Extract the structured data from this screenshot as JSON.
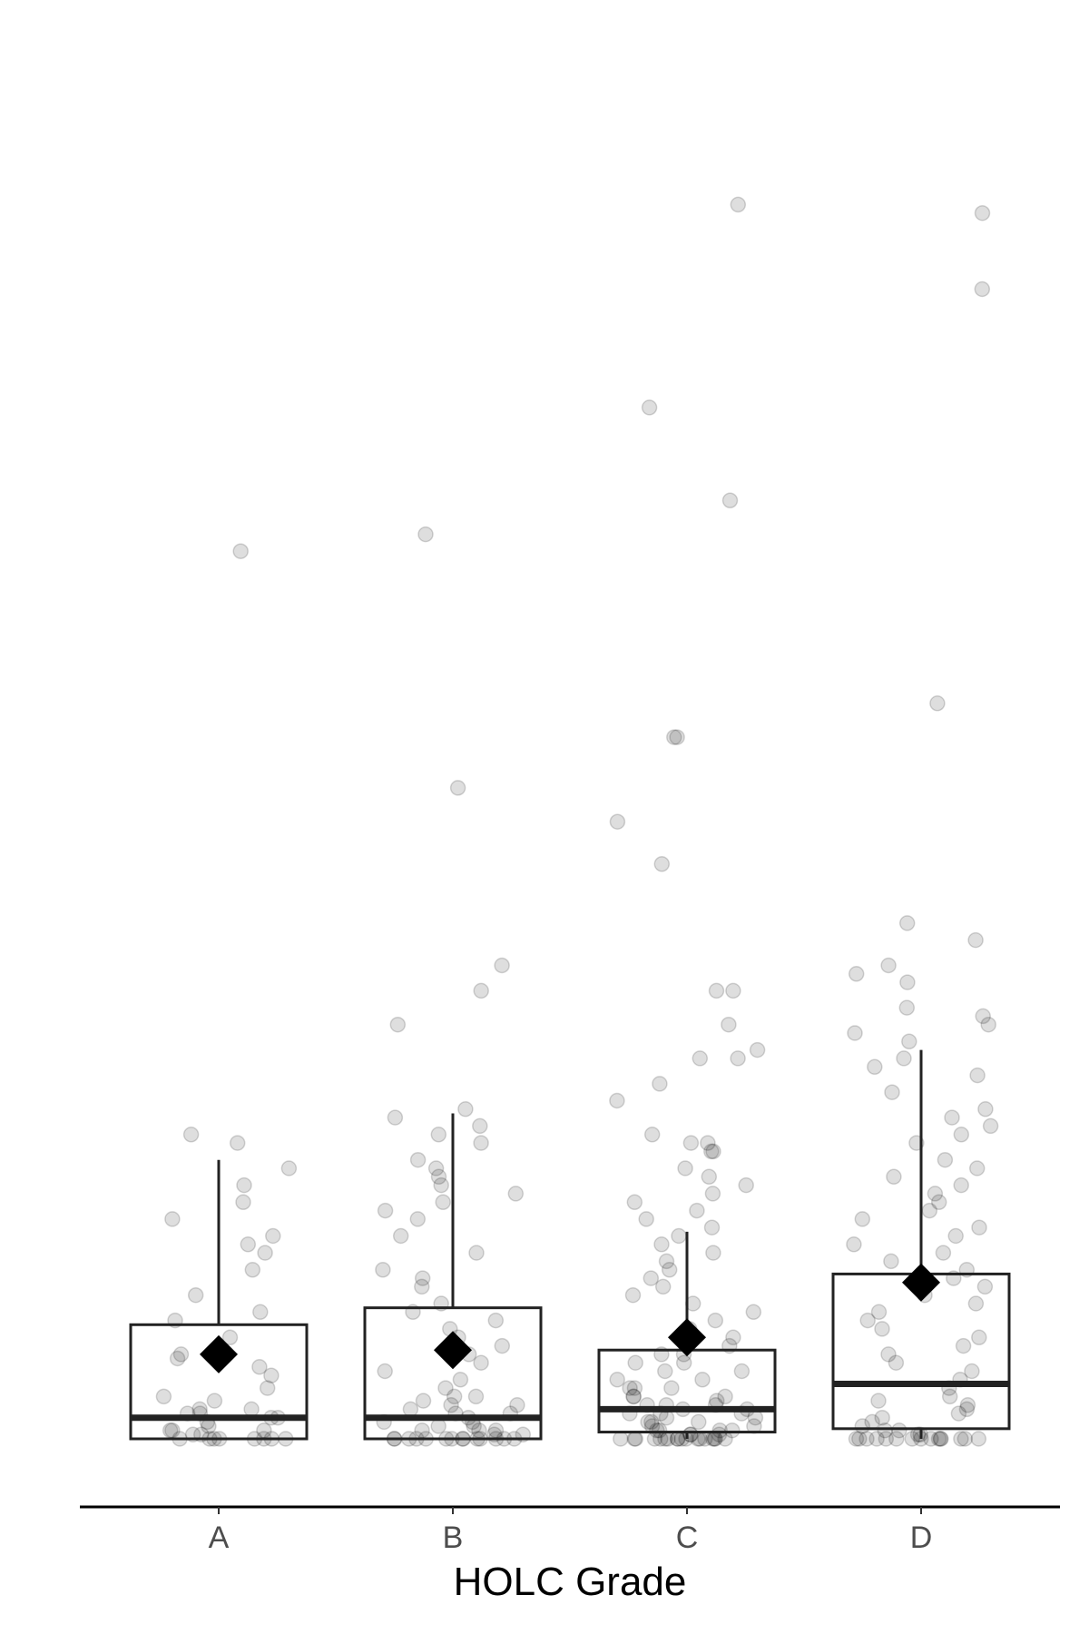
{
  "chart_data": {
    "type": "boxplot",
    "xlabel": "HOLC Grade",
    "ylabel": "",
    "categories": [
      "A",
      "B",
      "C",
      "D"
    ],
    "ylim": [
      0,
      160
    ],
    "y_axis_visible": false,
    "grid": false,
    "colors": {
      "box": "#222222",
      "points": "#000000",
      "mean": "#000000",
      "axis": "#000000"
    },
    "boxes": [
      {
        "category": "A",
        "q1": 0,
        "median": 2.5,
        "q3": 13.5,
        "whisker_low": 0,
        "whisker_high": 33,
        "mean": 10
      },
      {
        "category": "B",
        "q1": 0,
        "median": 2.5,
        "q3": 15.5,
        "whisker_low": 0,
        "whisker_high": 38.5,
        "mean": 10.5
      },
      {
        "category": "C",
        "q1": 0.8,
        "median": 3.5,
        "q3": 10.5,
        "whisker_low": 0,
        "whisker_high": 24.5,
        "mean": 12
      },
      {
        "category": "D",
        "q1": 1.2,
        "median": 6.5,
        "q3": 19.5,
        "whisker_low": 0,
        "whisker_high": 46,
        "mean": 18.5
      }
    ],
    "points": [
      {
        "category": "A",
        "values": [
          105,
          36,
          35,
          32,
          30,
          28,
          26,
          24,
          23,
          22,
          20,
          17,
          15,
          14,
          12,
          10,
          9.5,
          8.5,
          7.5,
          6,
          5,
          4.5,
          3.5,
          3.5,
          3,
          3,
          2.5,
          2.5,
          2,
          1.5,
          1,
          1,
          1,
          0.5,
          0.5,
          0,
          0,
          0,
          0,
          0,
          0,
          0,
          0
        ]
      },
      {
        "category": "B",
        "values": [
          107,
          77,
          56,
          53,
          49,
          39,
          38,
          37,
          36,
          35,
          33,
          32,
          31,
          30,
          29,
          28,
          27,
          26,
          24,
          22,
          20,
          19,
          18,
          16,
          15,
          14,
          13,
          12,
          11,
          10,
          9,
          8,
          7,
          6,
          5,
          5,
          4.5,
          4,
          4,
          3.5,
          3,
          3,
          2.5,
          2,
          2,
          1.5,
          1.5,
          1,
          1,
          1,
          0.5,
          0.5,
          0,
          0,
          0,
          0,
          0,
          0,
          0,
          0,
          0,
          0,
          0,
          0,
          0,
          0
        ]
      },
      {
        "category": "C",
        "values": [
          146,
          122,
          111,
          83,
          83,
          73,
          68,
          53,
          53,
          49,
          46,
          45,
          45,
          42,
          40,
          36,
          35,
          35,
          34,
          34,
          32,
          31,
          30,
          29,
          28,
          27,
          26,
          25,
          24,
          23,
          22,
          21,
          20,
          19,
          18,
          17,
          16,
          15,
          14,
          13,
          12,
          11,
          10,
          10,
          9,
          9,
          8,
          8,
          7,
          7,
          6,
          6,
          6,
          5,
          5,
          5,
          4.5,
          4,
          4,
          4,
          3.5,
          3.5,
          3,
          3,
          3,
          2.5,
          2.5,
          2,
          2,
          2,
          1.5,
          1.5,
          1,
          1,
          1,
          1,
          0.5,
          0.5,
          0.5,
          0,
          0,
          0,
          0,
          0,
          0,
          0,
          0,
          0,
          0,
          0,
          0,
          0,
          0,
          0,
          0,
          0,
          0
        ]
      },
      {
        "category": "D",
        "values": [
          145,
          136,
          87,
          61,
          59,
          56,
          55,
          54,
          51,
          50,
          49,
          48,
          47,
          45,
          44,
          43,
          41,
          39,
          38,
          37,
          36,
          35,
          33,
          32,
          31,
          30,
          29,
          28,
          27,
          26,
          25,
          24,
          23,
          22,
          21,
          20,
          19,
          18,
          17,
          16,
          15,
          14,
          13,
          12,
          11,
          10,
          9,
          8,
          7,
          6,
          5,
          4.5,
          4,
          3.5,
          3,
          2.5,
          2,
          1.5,
          1,
          1,
          0.5,
          0.5,
          0,
          0,
          0,
          0,
          0,
          0,
          0,
          0,
          0,
          0,
          0,
          0,
          0,
          0,
          0
        ]
      }
    ]
  }
}
